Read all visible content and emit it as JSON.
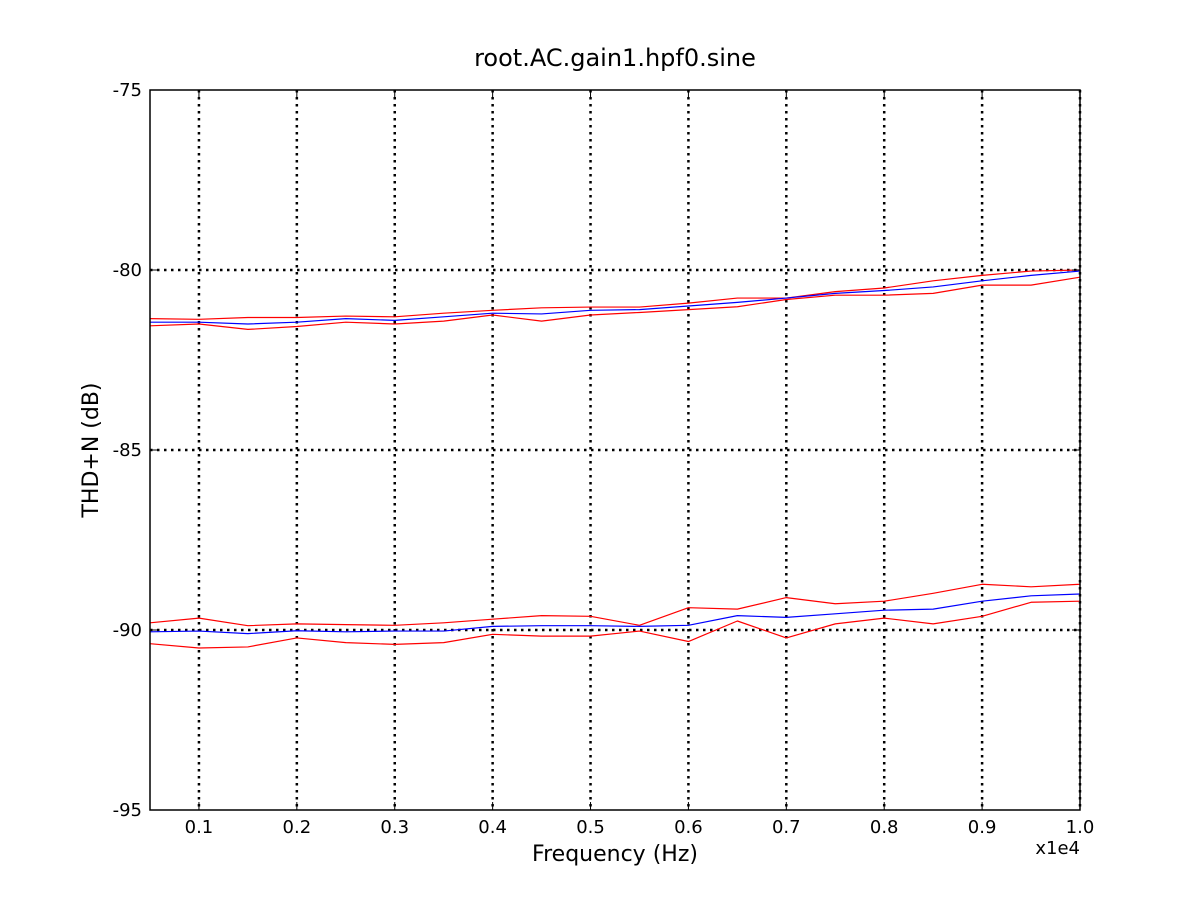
{
  "chart_data": {
    "type": "line",
    "title": "root.AC.gain1.hpf0.sine",
    "xlabel": "Frequency (Hz)",
    "ylabel": "THD+N (dB)",
    "x_multiplier_label": "x1e4",
    "xlim": [
      0.05,
      1.0
    ],
    "ylim": [
      -95,
      -75
    ],
    "x_ticks": [
      0.1,
      0.2,
      0.3,
      0.4,
      0.5,
      0.6,
      0.7,
      0.8,
      0.9,
      1.0
    ],
    "x_tick_labels": [
      "0.1",
      "0.2",
      "0.3",
      "0.4",
      "0.5",
      "0.6",
      "0.7",
      "0.8",
      "0.9",
      "1.0"
    ],
    "y_ticks": [
      -95,
      -90,
      -85,
      -80,
      -75
    ],
    "y_tick_labels": [
      "-95",
      "-90",
      "-85",
      "-80",
      "-75"
    ],
    "grid": true,
    "x": [
      0.05,
      0.1,
      0.15,
      0.2,
      0.25,
      0.3,
      0.35,
      0.4,
      0.45,
      0.5,
      0.55,
      0.6,
      0.65,
      0.7,
      0.75,
      0.8,
      0.85,
      0.9,
      0.95,
      1.0
    ],
    "series": [
      {
        "color": "#ff0000",
        "values": [
          -81.35,
          -81.37,
          -81.32,
          -81.32,
          -81.28,
          -81.3,
          -81.2,
          -81.12,
          -81.05,
          -81.03,
          -81.03,
          -80.92,
          -80.78,
          -80.78,
          -80.6,
          -80.5,
          -80.3,
          -80.15,
          -80.03,
          -80.0
        ]
      },
      {
        "color": "#0000ff",
        "values": [
          -81.45,
          -81.45,
          -81.5,
          -81.45,
          -81.35,
          -81.4,
          -81.3,
          -81.2,
          -81.22,
          -81.12,
          -81.1,
          -81.0,
          -80.9,
          -80.78,
          -80.65,
          -80.57,
          -80.47,
          -80.3,
          -80.15,
          -80.03
        ]
      },
      {
        "color": "#ff0000",
        "values": [
          -81.55,
          -81.5,
          -81.65,
          -81.57,
          -81.45,
          -81.5,
          -81.42,
          -81.25,
          -81.42,
          -81.25,
          -81.18,
          -81.1,
          -81.02,
          -80.82,
          -80.7,
          -80.7,
          -80.65,
          -80.42,
          -80.42,
          -80.2
        ]
      },
      {
        "color": "#ff0000",
        "values": [
          -89.8,
          -89.67,
          -89.88,
          -89.83,
          -89.85,
          -89.87,
          -89.8,
          -89.7,
          -89.6,
          -89.62,
          -89.87,
          -89.38,
          -89.42,
          -89.1,
          -89.27,
          -89.2,
          -88.98,
          -88.73,
          -88.8,
          -88.73
        ]
      },
      {
        "color": "#0000ff",
        "values": [
          -90.05,
          -90.03,
          -90.1,
          -90.02,
          -90.05,
          -90.03,
          -90.03,
          -89.9,
          -89.88,
          -89.88,
          -89.9,
          -89.87,
          -89.6,
          -89.65,
          -89.55,
          -89.45,
          -89.42,
          -89.2,
          -89.05,
          -89.0
        ]
      },
      {
        "color": "#ff0000",
        "values": [
          -90.38,
          -90.5,
          -90.47,
          -90.22,
          -90.35,
          -90.4,
          -90.35,
          -90.12,
          -90.17,
          -90.17,
          -90.03,
          -90.32,
          -89.75,
          -90.22,
          -89.83,
          -89.67,
          -89.83,
          -89.62,
          -89.23,
          -89.2
        ]
      }
    ]
  }
}
